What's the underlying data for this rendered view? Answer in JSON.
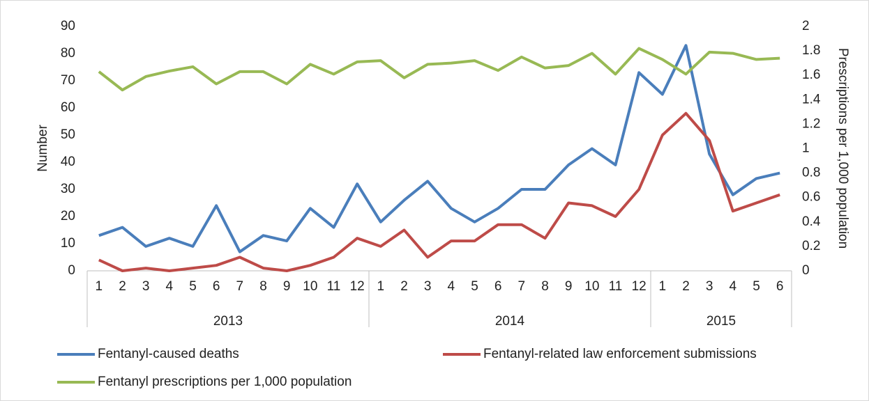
{
  "chart_data": {
    "type": "line",
    "categories": [
      "1",
      "2",
      "3",
      "4",
      "5",
      "6",
      "7",
      "8",
      "9",
      "10",
      "11",
      "12",
      "1",
      "2",
      "3",
      "4",
      "5",
      "6",
      "7",
      "8",
      "9",
      "10",
      "11",
      "12",
      "1",
      "2",
      "3",
      "4",
      "5",
      "6"
    ],
    "groups": [
      "2013",
      "2014",
      "2015"
    ],
    "ylabel": "Number",
    "y2label": "Prescriptions per 1,000 population",
    "ylim": [
      0,
      90
    ],
    "yticks": [
      0,
      10,
      20,
      30,
      40,
      50,
      60,
      70,
      80,
      90
    ],
    "y2lim": [
      0,
      2
    ],
    "y2ticks": [
      0,
      0.2,
      0.4,
      0.6,
      0.8,
      1,
      1.2,
      1.4,
      1.6,
      1.8,
      2
    ],
    "series": [
      {
        "name": "Fentanyl-caused deaths",
        "color": "#4a7ebb",
        "values": [
          13,
          16,
          9,
          12,
          9,
          24,
          7,
          13,
          11,
          23,
          16,
          32,
          18,
          26,
          33,
          23,
          18,
          23,
          30,
          30,
          39,
          45,
          39,
          73,
          65,
          83,
          43,
          28,
          34,
          36
        ]
      },
      {
        "name": "Fentanyl-related law enforcement submissions",
        "color": "#be4b48",
        "values": [
          4,
          0,
          1,
          0,
          1,
          2,
          5,
          1,
          0,
          2,
          5,
          12,
          9,
          15,
          5,
          11,
          11,
          17,
          17,
          12,
          25,
          24,
          20,
          30,
          50,
          58,
          48,
          22,
          25,
          28
        ]
      },
      {
        "name": "Fentanyl prescriptions per 1,000 population",
        "color": "#98b954",
        "axis": "y2",
        "values": [
          1.63,
          1.48,
          1.59,
          1.635,
          1.67,
          1.53,
          1.63,
          1.63,
          1.53,
          1.69,
          1.61,
          1.71,
          1.72,
          1.58,
          1.69,
          1.7,
          1.72,
          1.64,
          1.75,
          1.66,
          1.68,
          1.78,
          1.61,
          1.82,
          1.73,
          1.61,
          1.79,
          1.78,
          1.73,
          1.74
        ]
      }
    ]
  }
}
